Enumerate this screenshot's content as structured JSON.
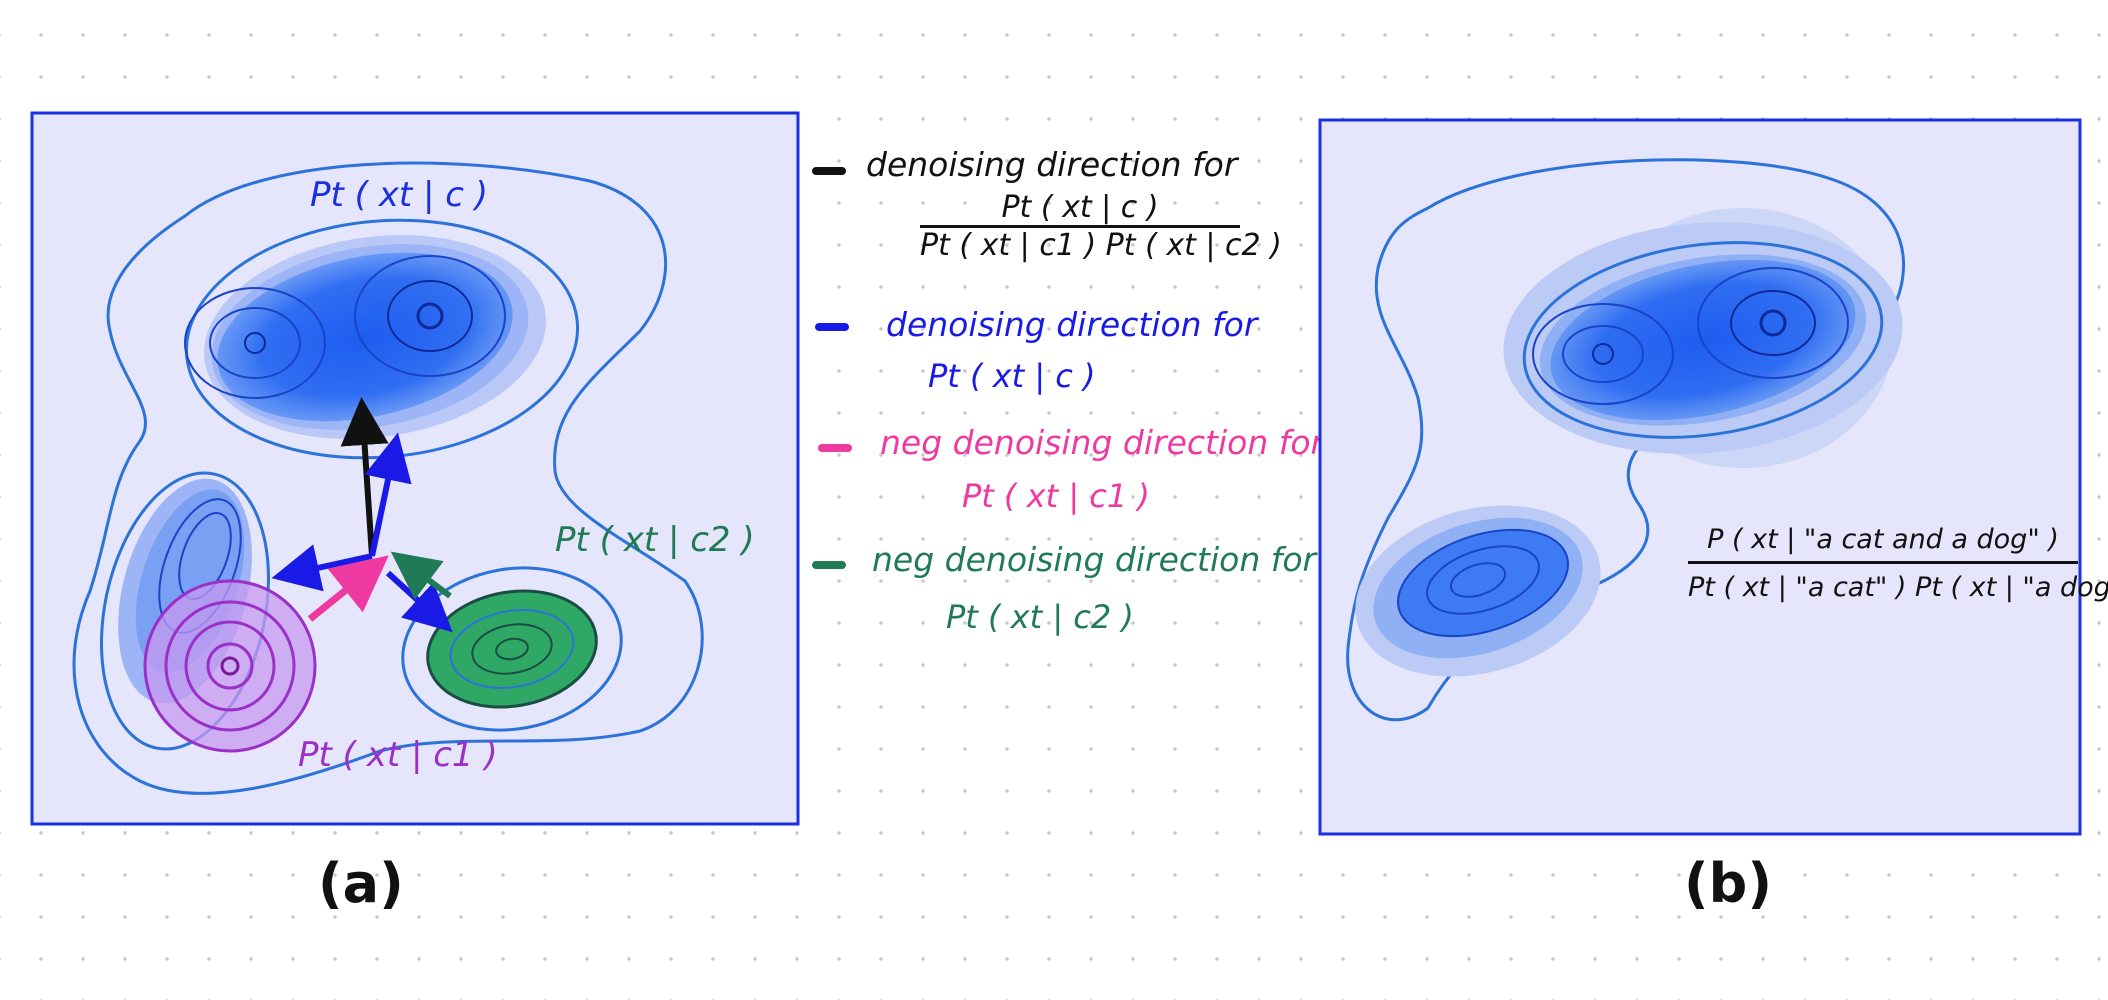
{
  "panels": {
    "a": {
      "caption": "(a)",
      "labels": {
        "cond_c": "Pt ( xt | c )",
        "cond_c1": "Pt ( xt | c1 )",
        "cond_c2": "Pt ( xt | c2 )"
      }
    },
    "b": {
      "caption": "(b)",
      "fraction": {
        "numerator": "P ( xt | \"a cat and a dog\" )",
        "denominator": "Pt ( xt | \"a cat\" ) Pt ( xt | \"a dog\" )"
      }
    }
  },
  "legend": [
    {
      "text": "denoising direction for",
      "formula_numerator": "Pt ( xt | c )",
      "formula_denominator": "Pt ( xt | c1 )  Pt ( xt | c2 )",
      "color": "#111111"
    },
    {
      "text": "denoising direction for",
      "formula": "Pt ( xt | c )",
      "color": "#1a1ae6"
    },
    {
      "text": "neg denoising direction for",
      "formula": "Pt ( xt | c1 )",
      "color": "#ee3aa0"
    },
    {
      "text": "neg denoising direction for",
      "formula": "Pt ( xt | c2 )",
      "color": "#1f7a55"
    }
  ],
  "colors": {
    "panel_fill": "#e5e5fb",
    "panel_border": "#1a2fe0",
    "contour": "#2b73d9",
    "blob": "#1e5cf0",
    "purple": "#9b30c8",
    "green": "#1e9a55",
    "black_arrow": "#111111",
    "blue_arrow": "#1a1ae6",
    "pink_arrow": "#ee3aa0",
    "green_arrow": "#1f7a55"
  }
}
